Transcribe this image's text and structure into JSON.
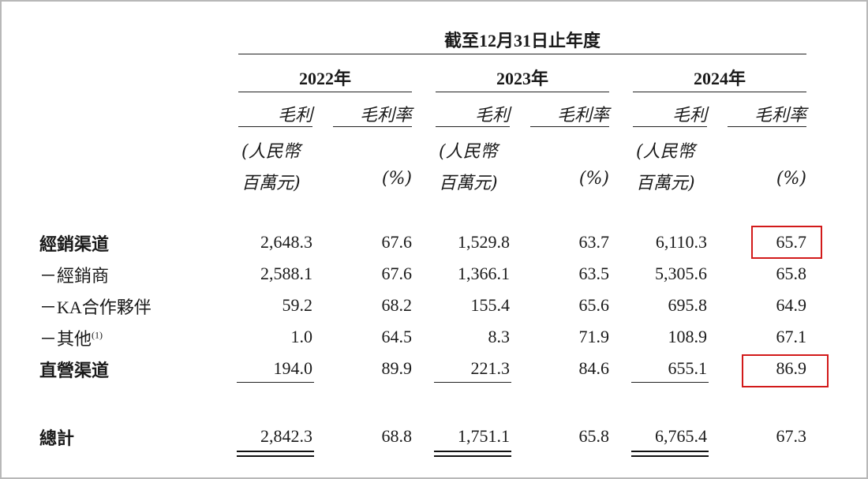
{
  "header": {
    "span_title": "截至12月31日止年度",
    "years": [
      "2022年",
      "2023年",
      "2024年"
    ],
    "col_gross_profit": "毛利",
    "col_margin": "毛利率",
    "unit_line1": "(人民幣",
    "unit_line2": "百萬元)",
    "unit_pct": "(%)"
  },
  "rows": [
    {
      "label": "經銷渠道",
      "bold": true,
      "values": [
        "2,648.3",
        "67.6",
        "1,529.8",
        "63.7",
        "6,110.3",
        "65.7"
      ]
    },
    {
      "label": "－經銷商",
      "bold": false,
      "values": [
        "2,588.1",
        "67.6",
        "1,366.1",
        "63.5",
        "5,305.6",
        "65.8"
      ]
    },
    {
      "label": "－KA合作夥伴",
      "bold": false,
      "values": [
        "59.2",
        "68.2",
        "155.4",
        "65.6",
        "695.8",
        "64.9"
      ]
    },
    {
      "label": "－其他",
      "note": "(1)",
      "bold": false,
      "values": [
        "1.0",
        "64.5",
        "8.3",
        "71.9",
        "108.9",
        "67.1"
      ]
    },
    {
      "label": "直營渠道",
      "bold": true,
      "values": [
        "194.0",
        "89.9",
        "221.3",
        "84.6",
        "655.1",
        "86.9"
      ]
    }
  ],
  "total": {
    "label": "總計",
    "values": [
      "2,842.3",
      "68.8",
      "1,751.1",
      "65.8",
      "6,765.4",
      "67.3"
    ]
  },
  "highlight_color": "#d21a1a"
}
